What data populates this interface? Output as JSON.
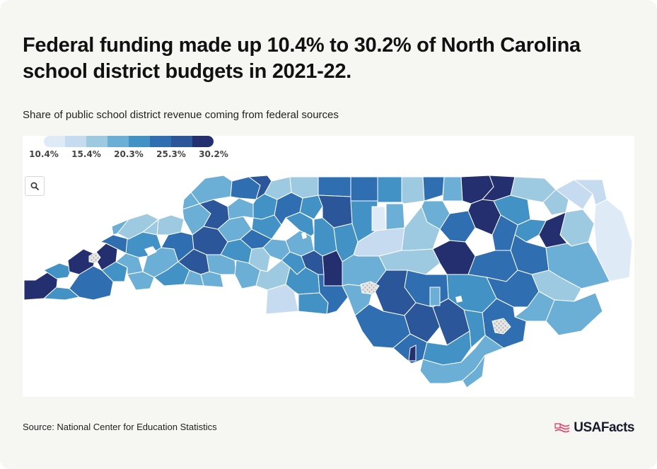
{
  "title": "Federal funding made up 10.4% to 30.2% of North Carolina school district budgets in 2021-22.",
  "subtitle": "Share of public school district revenue coming from federal sources",
  "legend": {
    "labels": [
      "10.4%",
      "15.4%",
      "20.3%",
      "25.3%",
      "30.2%"
    ],
    "colors": [
      "#deebf7",
      "#c6dbef",
      "#9ecae1",
      "#6baed6",
      "#4292c6",
      "#2f6fb1",
      "#2b5699",
      "#232f6e"
    ]
  },
  "zoom_icon": "search-icon",
  "source": "Source: National Center for Education Statistics",
  "logo": {
    "text": "USAFacts",
    "icon": "us-flag-icon"
  },
  "colors": {
    "background": "#f6f6f2",
    "panel": "#ffffff",
    "nodata": "#cfcfcf"
  }
}
